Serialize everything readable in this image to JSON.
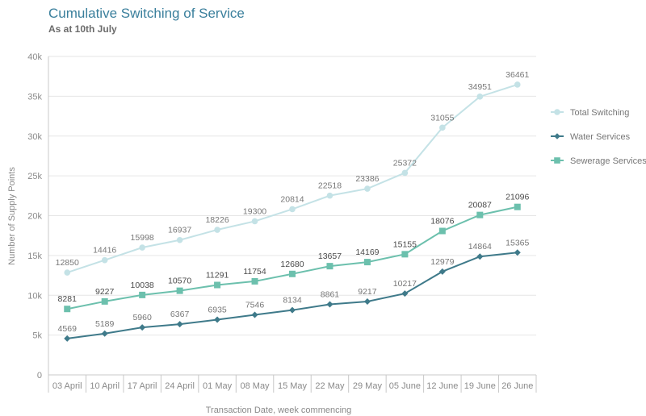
{
  "header": {
    "title": "Cumulative Switching of Service",
    "subtitle": "As at 10th July"
  },
  "colors": {
    "total": "#c4e2e6",
    "water": "#3f7a8a",
    "sewerage": "#6cc0ad",
    "axis": "#c8c8c8",
    "grid": "#e6e6e6"
  },
  "chart_data": {
    "type": "line",
    "title": "Cumulative Switching of Service",
    "subtitle": "As at 10th July",
    "xlabel": "Transaction Date, week commencing",
    "ylabel": "Number of Supply Points",
    "ylim": [
      0,
      40000
    ],
    "yticks": [
      {
        "value": 0,
        "label": "0"
      },
      {
        "value": 5000,
        "label": "5k"
      },
      {
        "value": 10000,
        "label": "10k"
      },
      {
        "value": 15000,
        "label": "15k"
      },
      {
        "value": 20000,
        "label": "20k"
      },
      {
        "value": 25000,
        "label": "25k"
      },
      {
        "value": 30000,
        "label": "30k"
      },
      {
        "value": 35000,
        "label": "35k"
      },
      {
        "value": 40000,
        "label": "40k"
      }
    ],
    "grid": true,
    "legend_position": "right",
    "categories": [
      "03 April",
      "10 April",
      "17 April",
      "24 April",
      "01 May",
      "08 May",
      "15 May",
      "22 May",
      "29 May",
      "05 June",
      "12 June",
      "19 June",
      "26 June"
    ],
    "series": [
      {
        "name": "Total Switching",
        "marker": "circle",
        "color": "#c4e2e6",
        "label_style": "light",
        "values": [
          12850,
          14416,
          15998,
          16937,
          18226,
          19300,
          20814,
          22518,
          23386,
          25372,
          31055,
          34951,
          36461
        ]
      },
      {
        "name": "Water Services",
        "marker": "diamond",
        "color": "#3f7a8a",
        "label_style": "light",
        "values": [
          4569,
          5189,
          5960,
          6367,
          6935,
          7546,
          8134,
          8861,
          9217,
          10217,
          12979,
          14864,
          15365
        ]
      },
      {
        "name": "Sewerage Services",
        "marker": "square",
        "color": "#6cc0ad",
        "label_style": "dark",
        "values": [
          8281,
          9227,
          10038,
          10570,
          11291,
          11754,
          12680,
          13657,
          14169,
          15155,
          18076,
          20087,
          21096
        ]
      }
    ]
  }
}
